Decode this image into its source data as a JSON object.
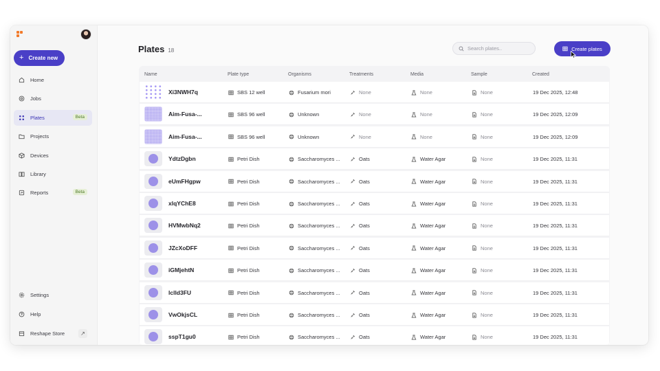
{
  "sidebar": {
    "create_new": "Create new",
    "nav": [
      {
        "label": "Home",
        "icon": "home-icon"
      },
      {
        "label": "Jobs",
        "icon": "jobs-icon"
      },
      {
        "label": "Plates",
        "icon": "plates-icon",
        "badge": "Beta",
        "active": true
      },
      {
        "label": "Projects",
        "icon": "folder-icon"
      },
      {
        "label": "Devices",
        "icon": "device-icon"
      },
      {
        "label": "Library",
        "icon": "book-icon"
      },
      {
        "label": "Reports",
        "icon": "report-icon",
        "badge": "Beta"
      }
    ],
    "bottom": [
      {
        "label": "Settings",
        "icon": "gear-icon"
      },
      {
        "label": "Help",
        "icon": "help-icon"
      },
      {
        "label": "Reshape Store",
        "icon": "store-icon",
        "ext": "↗"
      }
    ]
  },
  "header": {
    "title": "Plates",
    "count": "18",
    "search_placeholder": "Search plates..",
    "create_plates": "Create plates"
  },
  "table": {
    "columns": [
      "Name",
      "Plate type",
      "Organisms",
      "Treatments",
      "Media",
      "Sample",
      "Created"
    ],
    "rows": [
      {
        "thumb": "dots12",
        "name": "Xi3NWH7q",
        "plate_type": "SBS 12 well",
        "organism": "Fusarium mori",
        "treatment": "None",
        "media": "None",
        "sample": "None",
        "created": "19 Dec 2025, 12:48"
      },
      {
        "thumb": "dots96",
        "name": "Aim-Fusa-...",
        "plate_type": "SBS 96 well",
        "organism": "Unknown",
        "treatment": "None",
        "media": "None",
        "sample": "None",
        "created": "19 Dec 2025, 12:09"
      },
      {
        "thumb": "dots96",
        "name": "Aim-Fusa-...",
        "plate_type": "SBS 96 well",
        "organism": "Unknown",
        "treatment": "None",
        "media": "None",
        "sample": "None",
        "created": "19 Dec 2025, 12:09"
      },
      {
        "thumb": "petri",
        "name": "YdtzDgbn",
        "plate_type": "Petri Dish",
        "organism": "Saccharomyces ...",
        "treatment": "Oats",
        "media": "Water Agar",
        "sample": "None",
        "created": "19 Dec 2025, 11:31"
      },
      {
        "thumb": "petri",
        "name": "eUmFHgpw",
        "plate_type": "Petri Dish",
        "organism": "Saccharomyces ...",
        "treatment": "Oats",
        "media": "Water Agar",
        "sample": "None",
        "created": "19 Dec 2025, 11:31"
      },
      {
        "thumb": "petri",
        "name": "xlqYChE8",
        "plate_type": "Petri Dish",
        "organism": "Saccharomyces ...",
        "treatment": "Oats",
        "media": "Water Agar",
        "sample": "None",
        "created": "19 Dec 2025, 11:31"
      },
      {
        "thumb": "petri",
        "name": "HVMwbNq2",
        "plate_type": "Petri Dish",
        "organism": "Saccharomyces ...",
        "treatment": "Oats",
        "media": "Water Agar",
        "sample": "None",
        "created": "19 Dec 2025, 11:31"
      },
      {
        "thumb": "petri",
        "name": "JZcXoDFF",
        "plate_type": "Petri Dish",
        "organism": "Saccharomyces ...",
        "treatment": "Oats",
        "media": "Water Agar",
        "sample": "None",
        "created": "19 Dec 2025, 11:31"
      },
      {
        "thumb": "petri",
        "name": "iGMjehtN",
        "plate_type": "Petri Dish",
        "organism": "Saccharomyces ...",
        "treatment": "Oats",
        "media": "Water Agar",
        "sample": "None",
        "created": "19 Dec 2025, 11:31"
      },
      {
        "thumb": "petri",
        "name": "lclld3FU",
        "plate_type": "Petri Dish",
        "organism": "Saccharomyces ...",
        "treatment": "Oats",
        "media": "Water Agar",
        "sample": "None",
        "created": "19 Dec 2025, 11:31"
      },
      {
        "thumb": "petri",
        "name": "VwOkjsCL",
        "plate_type": "Petri Dish",
        "organism": "Saccharomyces ...",
        "treatment": "Oats",
        "media": "Water Agar",
        "sample": "None",
        "created": "19 Dec 2025, 11:31"
      },
      {
        "thumb": "petri",
        "name": "sspT1gu0",
        "plate_type": "Petri Dish",
        "organism": "Saccharomyces ...",
        "treatment": "Oats",
        "media": "Water Agar",
        "sample": "None",
        "created": "19 Dec 2025, 11:31"
      }
    ]
  },
  "colors": {
    "accent": "#4a3fc7",
    "logo": "#f27a2a",
    "well": "#9d91e8",
    "beta_bg": "#e6efd6",
    "beta_fg": "#4e7a26"
  }
}
